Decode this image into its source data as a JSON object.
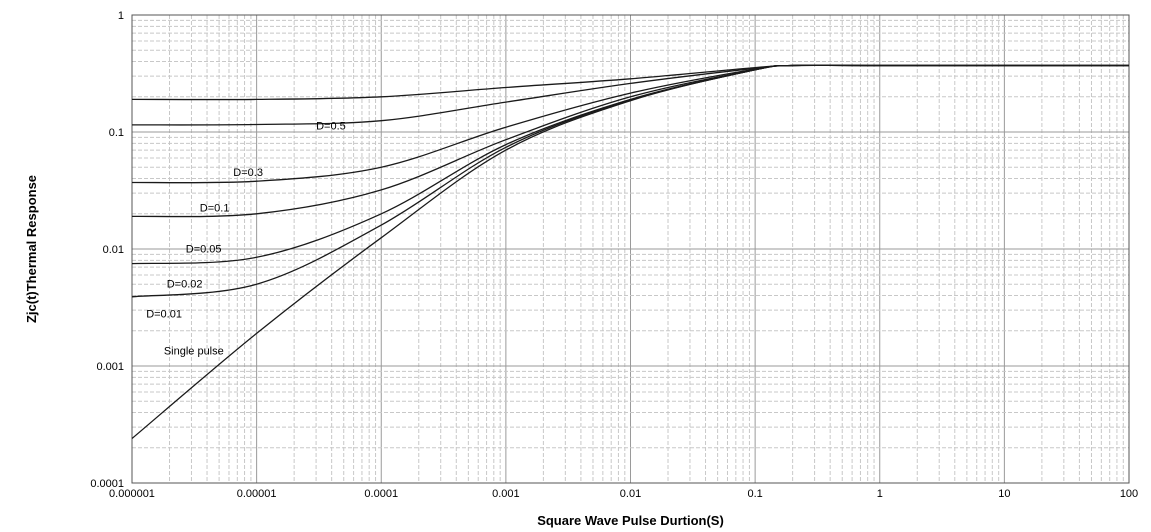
{
  "chart_data": {
    "type": "line",
    "title": "",
    "xlabel": "Square Wave Pulse Durtion(S)",
    "ylabel": "Zjc(t)Thermal Response",
    "x_scale": "log",
    "y_scale": "log",
    "xlim": [
      1e-06,
      100
    ],
    "ylim": [
      0.0001,
      1
    ],
    "grid": true,
    "x_ticks": [
      "0.000001",
      "0.00001",
      "0.0001",
      "0.001",
      "0.01",
      "0.1",
      "1",
      "10",
      "100"
    ],
    "y_ticks": [
      "0.0001",
      "0.001",
      "0.01",
      "0.1",
      "1"
    ],
    "series": [
      {
        "x": [
          1e-06,
          1e-05,
          0.0001,
          0.001,
          0.01,
          0.1,
          0.2,
          1,
          100
        ],
        "y": [
          0.19,
          0.19,
          0.2,
          0.24,
          0.285,
          0.355,
          0.37,
          0.37,
          0.37
        ]
      },
      {
        "x": [
          1e-06,
          1e-05,
          0.0001,
          0.001,
          0.01,
          0.1,
          0.2,
          1,
          100
        ],
        "y": [
          0.115,
          0.116,
          0.125,
          0.18,
          0.26,
          0.35,
          0.37,
          0.37,
          0.37
        ]
      },
      {
        "x": [
          1e-06,
          1e-05,
          0.0001,
          0.001,
          0.01,
          0.1,
          0.2,
          1,
          100
        ],
        "y": [
          0.037,
          0.038,
          0.05,
          0.11,
          0.215,
          0.345,
          0.37,
          0.37,
          0.37
        ]
      },
      {
        "x": [
          1e-06,
          1e-05,
          0.0001,
          0.001,
          0.01,
          0.1,
          0.2,
          1,
          100
        ],
        "y": [
          0.019,
          0.02,
          0.032,
          0.086,
          0.2,
          0.34,
          0.37,
          0.37,
          0.37
        ]
      },
      {
        "x": [
          1e-06,
          1e-05,
          0.0001,
          0.001,
          0.01,
          0.1,
          0.2,
          1,
          100
        ],
        "y": [
          0.0075,
          0.0085,
          0.02,
          0.078,
          0.19,
          0.34,
          0.37,
          0.37,
          0.37
        ]
      },
      {
        "x": [
          1e-06,
          1e-05,
          0.0001,
          0.001,
          0.01,
          0.1,
          0.2,
          1,
          100
        ],
        "y": [
          0.0039,
          0.005,
          0.016,
          0.074,
          0.188,
          0.34,
          0.37,
          0.37,
          0.37
        ]
      },
      {
        "x": [
          1e-06,
          1e-05,
          0.0001,
          0.001,
          0.01,
          0.1,
          0.2,
          1,
          100
        ],
        "y": [
          0.00024,
          0.0019,
          0.0125,
          0.07,
          0.185,
          0.34,
          0.37,
          0.37,
          0.37
        ]
      }
    ],
    "annotations": [
      {
        "text": "D=0.5",
        "x": 3e-05,
        "y": 0.105
      },
      {
        "text": "D=0.3",
        "x": 6.5e-06,
        "y": 0.042
      },
      {
        "text": "D=0.1",
        "x": 3.5e-06,
        "y": 0.021
      },
      {
        "text": "D=0.05",
        "x": 2.7e-06,
        "y": 0.0093
      },
      {
        "text": "D=0.02",
        "x": 1.9e-06,
        "y": 0.0047
      },
      {
        "text": "D=0.01",
        "x": 1.3e-06,
        "y": 0.0026
      },
      {
        "text": "Single  pulse",
        "x": 1.8e-06,
        "y": 0.00125
      }
    ]
  }
}
